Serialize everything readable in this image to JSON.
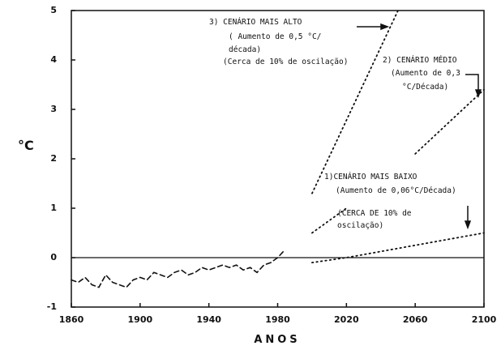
{
  "chart_data": {
    "type": "line",
    "y_label": "°C",
    "x_label": "ANOS",
    "xlim": [
      1860,
      2100
    ],
    "xticks": [
      1860,
      1900,
      1940,
      1980,
      2020,
      2060,
      2100
    ],
    "ylim": [
      -1,
      5
    ],
    "yticks": [
      -1,
      0,
      1,
      2,
      3,
      4,
      5
    ],
    "reference_line": 0,
    "annotations": [
      "3) CENÁRIO MAIS ALTO",
      "( Aumento de 0,5 °C/",
      "década)",
      "(Cerca de 10% de oscilação)",
      "2) CENÁRIO MÉDIO",
      "(Aumento de 0,3",
      "°C/Década)",
      "1)CENÁRIO MAIS BAIXO",
      "(Aumento de 0,06°C/Década)",
      "(CERCA DE 10% de",
      "oscilação)"
    ],
    "series": [
      {
        "color": "#111",
        "style": "dashed",
        "x": [
          1860,
          1864,
          1868,
          1872,
          1876,
          1880,
          1884,
          1888,
          1892,
          1896,
          1900,
          1904,
          1908,
          1912,
          1916,
          1920,
          1924,
          1928,
          1932,
          1936,
          1940,
          1944,
          1948,
          1952,
          1956,
          1960,
          1964,
          1968,
          1972,
          1976,
          1980,
          1984
        ],
        "values": [
          -0.45,
          -0.5,
          -0.4,
          -0.55,
          -0.6,
          -0.35,
          -0.5,
          -0.55,
          -0.6,
          -0.45,
          -0.4,
          -0.45,
          -0.3,
          -0.35,
          -0.4,
          -0.3,
          -0.25,
          -0.35,
          -0.3,
          -0.2,
          -0.25,
          -0.2,
          -0.15,
          -0.2,
          -0.15,
          -0.25,
          -0.2,
          -0.3,
          -0.15,
          -0.1,
          0.0,
          0.15
        ]
      },
      {
        "color": "#111",
        "style": "dotted",
        "x": [
          2000,
          2050
        ],
        "values": [
          1.3,
          5.0
        ]
      },
      {
        "color": "#111",
        "style": "dotted",
        "x": [
          2000,
          2020
        ],
        "values": [
          0.5,
          1.0
        ]
      },
      {
        "color": "#111",
        "style": "dotted",
        "x": [
          2060,
          2100
        ],
        "values": [
          2.1,
          3.4
        ]
      },
      {
        "color": "#111",
        "style": "dotted",
        "x": [
          2000,
          2020,
          2100
        ],
        "values": [
          -0.1,
          0,
          0.5
        ]
      }
    ]
  }
}
